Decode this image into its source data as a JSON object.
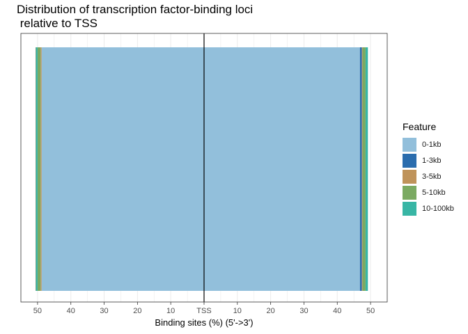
{
  "chart_data": {
    "type": "bar",
    "orientation": "horizontal-stacked-diverging",
    "title": "Distribution of transcription factor-binding loci\n relative to TSS",
    "xlabel": "Binding sites (%) (5'->3')",
    "ylabel": "",
    "xlim": [
      -55,
      55
    ],
    "x_ticks": [
      {
        "value": -50,
        "label": "50"
      },
      {
        "value": -40,
        "label": "40"
      },
      {
        "value": -30,
        "label": "30"
      },
      {
        "value": -20,
        "label": "20"
      },
      {
        "value": -10,
        "label": "10"
      },
      {
        "value": 0,
        "label": "TSS"
      },
      {
        "value": 10,
        "label": "10"
      },
      {
        "value": 20,
        "label": "20"
      },
      {
        "value": 30,
        "label": "30"
      },
      {
        "value": 40,
        "label": "40"
      },
      {
        "value": 50,
        "label": "50"
      }
    ],
    "grid": true,
    "legend_title": "Feature",
    "legend_position": "right",
    "series": [
      {
        "name": "0-1kb",
        "color": "#92BFDB",
        "upstream": 48.8,
        "downstream": 46.8
      },
      {
        "name": "1-3kb",
        "color": "#2B6DAE",
        "upstream": 0.0,
        "downstream": 0.6
      },
      {
        "name": "3-5kb",
        "color": "#BF935A",
        "upstream": 0.3,
        "downstream": 0.2
      },
      {
        "name": "5-10kb",
        "color": "#7BAA62",
        "upstream": 0.9,
        "downstream": 0.9
      },
      {
        "name": "10-100kb",
        "color": "#38B6A5",
        "upstream": 0.5,
        "downstream": 0.7
      }
    ]
  }
}
